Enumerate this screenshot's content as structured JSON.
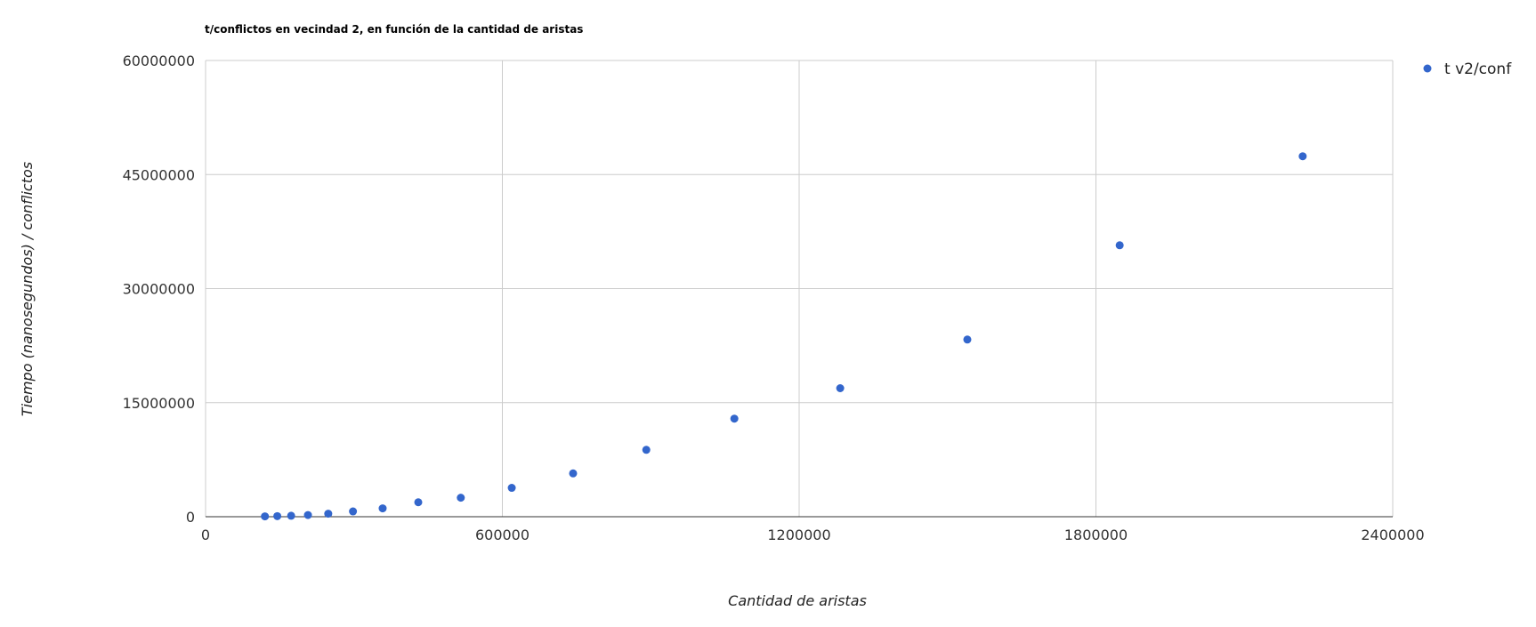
{
  "chart_data": {
    "type": "scatter",
    "title": "t/conflictos en vecindad 2, en función de la cantidad de aristas",
    "xlabel": "Cantidad de aristas",
    "ylabel": "Tiempo (nanosegundos) / conflictos",
    "xlim": [
      0,
      2400000
    ],
    "ylim": [
      0,
      60000000
    ],
    "x_ticks": [
      "0",
      "600000",
      "1200000",
      "1800000",
      "2400000"
    ],
    "y_ticks": [
      "0",
      "15000000",
      "30000000",
      "45000000",
      "60000000"
    ],
    "x_tick_values": [
      0,
      600000,
      1200000,
      1800000,
      2400000
    ],
    "y_tick_values": [
      0,
      15000000,
      30000000,
      45000000,
      60000000
    ],
    "grid": true,
    "legend_position": "top-right",
    "series": [
      {
        "name": "t v2/conf",
        "color": "#3366cc",
        "points": [
          {
            "x": 120000,
            "y": 50000
          },
          {
            "x": 145000,
            "y": 80000
          },
          {
            "x": 173000,
            "y": 130000
          },
          {
            "x": 207000,
            "y": 220000
          },
          {
            "x": 248000,
            "y": 400000
          },
          {
            "x": 298000,
            "y": 700000
          },
          {
            "x": 358000,
            "y": 1100000
          },
          {
            "x": 430000,
            "y": 1900000
          },
          {
            "x": 516000,
            "y": 2500000
          },
          {
            "x": 619000,
            "y": 3800000
          },
          {
            "x": 743000,
            "y": 5700000
          },
          {
            "x": 891000,
            "y": 8800000
          },
          {
            "x": 1069000,
            "y": 12900000
          },
          {
            "x": 1283000,
            "y": 16900000
          },
          {
            "x": 1540000,
            "y": 23300000
          },
          {
            "x": 1848000,
            "y": 35700000
          },
          {
            "x": 2218000,
            "y": 47400000
          }
        ]
      }
    ]
  }
}
